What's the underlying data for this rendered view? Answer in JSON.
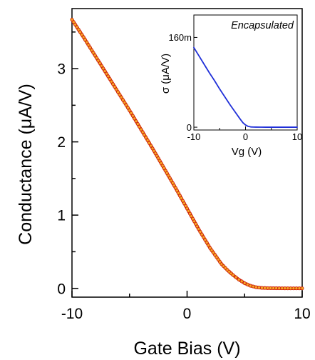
{
  "chart_data": [
    {
      "type": "scatter",
      "xlabel": "Gate Bias (V)",
      "ylabel": "Conductance (μA/V)",
      "xlim": [
        -10,
        10
      ],
      "ylim": [
        -0.12,
        3.82
      ],
      "x_ticks": [
        -10,
        0,
        10
      ],
      "x_tick_labels": [
        "-10",
        "0",
        "10"
      ],
      "y_ticks": [
        0,
        1,
        2,
        3
      ],
      "y_tick_labels": [
        "0",
        "1",
        "2",
        "3"
      ],
      "grid": false,
      "marker_color": "#f5a623",
      "line_color": "#d0260e",
      "series": [
        {
          "x": [
            -10,
            -9,
            -8,
            -7,
            -6,
            -5,
            -4,
            -3,
            -2,
            -1,
            0,
            1,
            2,
            3,
            3.5,
            4,
            4.5,
            5,
            5.5,
            6,
            6.5,
            7,
            7.5,
            8,
            9,
            10
          ],
          "y": [
            3.67,
            3.43,
            3.18,
            2.93,
            2.68,
            2.43,
            2.17,
            1.91,
            1.64,
            1.37,
            1.09,
            0.81,
            0.55,
            0.33,
            0.25,
            0.18,
            0.12,
            0.07,
            0.035,
            0.015,
            0.006,
            0.003,
            0.002,
            0.001,
            0.0,
            0.0
          ]
        }
      ]
    },
    {
      "type": "line",
      "title": "Encapsulated",
      "xlabel": "Vg (V)",
      "ylabel": "σ (μA/V)",
      "xlim": [
        -10,
        10
      ],
      "ylim": [
        -0.005,
        0.2
      ],
      "x_ticks": [
        -10,
        0,
        10
      ],
      "x_tick_labels": [
        "-10",
        "0",
        "10"
      ],
      "y_ticks": [
        0,
        0.16
      ],
      "y_tick_labels": [
        "0",
        "160m"
      ],
      "grid": false,
      "line_color": "#1f2fd8",
      "series": [
        {
          "x": [
            -10,
            -9,
            -8,
            -7,
            -6,
            -5,
            -4,
            -3,
            -2,
            -1,
            -0.5,
            0,
            0.5,
            1,
            1.5,
            2,
            3,
            4,
            5,
            6,
            7,
            8,
            9,
            10
          ],
          "y": [
            0.142,
            0.127,
            0.112,
            0.097,
            0.083,
            0.068,
            0.054,
            0.04,
            0.027,
            0.014,
            0.008,
            0.004,
            0.0015,
            0.0005,
            0.0003,
            0.0002,
            0.0001,
            0.0,
            0.0,
            0.0,
            0.0,
            0.0,
            0.0,
            0.0
          ]
        }
      ]
    }
  ]
}
